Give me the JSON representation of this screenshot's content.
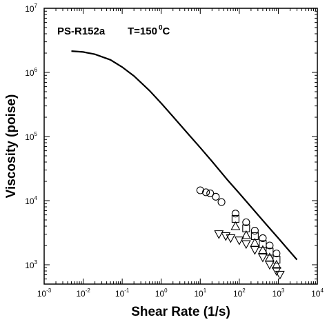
{
  "chart_data": {
    "type": "scatter",
    "xscale": "log",
    "yscale": "log",
    "xlim": [
      0.001,
      10000
    ],
    "ylim": [
      500,
      10000000
    ],
    "xlabel": "Shear Rate (1/s)",
    "ylabel": "Viscosity (poise)",
    "annotation": {
      "name": "PS-R152a",
      "temperature": "T=150",
      "temp_sup": "0",
      "temp_unit": "C"
    },
    "x_ticks": [
      {
        "base": "10",
        "exp": "-3",
        "value": 0.001
      },
      {
        "base": "10",
        "exp": "-2",
        "value": 0.01
      },
      {
        "base": "10",
        "exp": "-1",
        "value": 0.1
      },
      {
        "base": "10",
        "exp": "0",
        "value": 1
      },
      {
        "base": "10",
        "exp": "1",
        "value": 10
      },
      {
        "base": "10",
        "exp": "2",
        "value": 100
      },
      {
        "base": "10",
        "exp": "3",
        "value": 1000
      },
      {
        "base": "10",
        "exp": "4",
        "value": 10000
      }
    ],
    "y_ticks": [
      {
        "base": "10",
        "exp": "3",
        "value": 1000
      },
      {
        "base": "10",
        "exp": "4",
        "value": 10000
      },
      {
        "base": "10",
        "exp": "5",
        "value": 100000
      },
      {
        "base": "10",
        "exp": "6",
        "value": 1000000
      },
      {
        "base": "10",
        "exp": "7",
        "value": 10000000
      }
    ],
    "curve": {
      "style": "solid-line",
      "points": [
        [
          0.005,
          2150000
        ],
        [
          0.01,
          2080000
        ],
        [
          0.02,
          1920000
        ],
        [
          0.05,
          1570000
        ],
        [
          0.1,
          1210000
        ],
        [
          0.2,
          880000
        ],
        [
          0.5,
          520000
        ],
        [
          1,
          330000
        ],
        [
          2,
          205000
        ],
        [
          5,
          108000
        ],
        [
          10,
          67000
        ],
        [
          20,
          41000
        ],
        [
          50,
          21000
        ],
        [
          100,
          13000
        ],
        [
          200,
          8000
        ],
        [
          500,
          4200
        ],
        [
          1000,
          2600
        ],
        [
          3000,
          1200
        ]
      ]
    },
    "series": [
      {
        "marker": "circle",
        "points": [
          [
            10,
            14500
          ],
          [
            14,
            13500
          ],
          [
            18,
            13000
          ],
          [
            25,
            11500
          ],
          [
            35,
            9500
          ],
          [
            80,
            6300
          ],
          [
            150,
            4600
          ],
          [
            250,
            3400
          ],
          [
            400,
            2600
          ],
          [
            600,
            2000
          ],
          [
            900,
            1500
          ]
        ]
      },
      {
        "marker": "square",
        "points": [
          [
            80,
            5200
          ],
          [
            150,
            3700
          ],
          [
            250,
            2800
          ],
          [
            400,
            2100
          ],
          [
            600,
            1600
          ],
          [
            900,
            1200
          ]
        ]
      },
      {
        "marker": "triangle-up",
        "points": [
          [
            80,
            4000
          ],
          [
            150,
            2900
          ],
          [
            250,
            2200
          ],
          [
            400,
            1700
          ],
          [
            600,
            1300
          ],
          [
            900,
            1000
          ]
        ]
      },
      {
        "marker": "triangle-down",
        "points": [
          [
            30,
            3000
          ],
          [
            45,
            2800
          ],
          [
            60,
            2600
          ],
          [
            100,
            2400
          ],
          [
            150,
            2100
          ],
          [
            250,
            1700
          ],
          [
            400,
            1300
          ],
          [
            600,
            1000
          ],
          [
            900,
            800
          ],
          [
            1100,
            700
          ]
        ]
      }
    ]
  }
}
